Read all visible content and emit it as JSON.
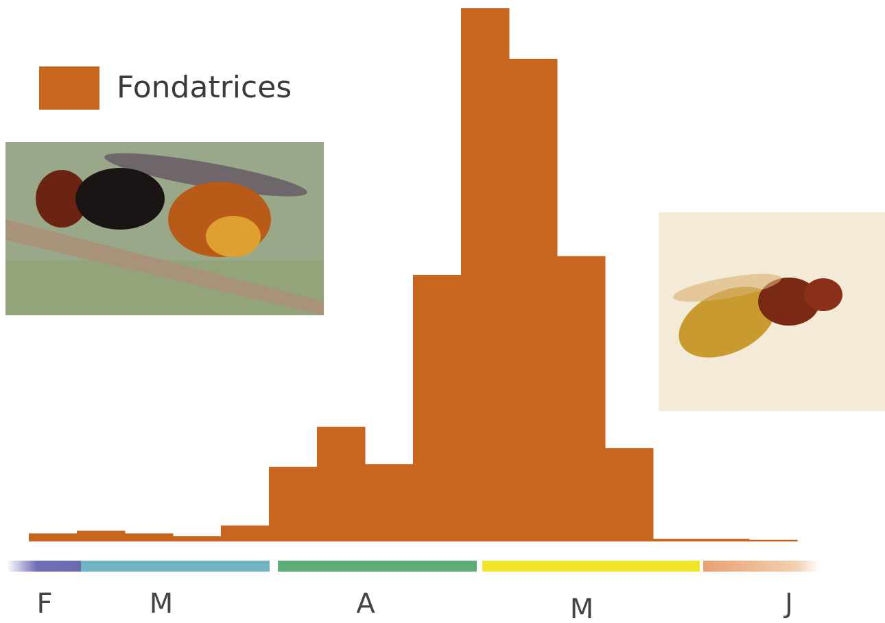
{
  "chart_data": {
    "type": "bar",
    "series": [
      {
        "name": "Fondatrices",
        "color": "#c8651f",
        "values": [
          1.5,
          2,
          1.5,
          1,
          3,
          14,
          21.5,
          14.5,
          50,
          100,
          90.5,
          53.5,
          17.5,
          0.5,
          0.5,
          0.3
        ]
      }
    ],
    "ylim": [
      0,
      100
    ],
    "x_labels": [
      "F",
      "M",
      "A",
      "M",
      "J"
    ],
    "legend": "top-left"
  }
}
